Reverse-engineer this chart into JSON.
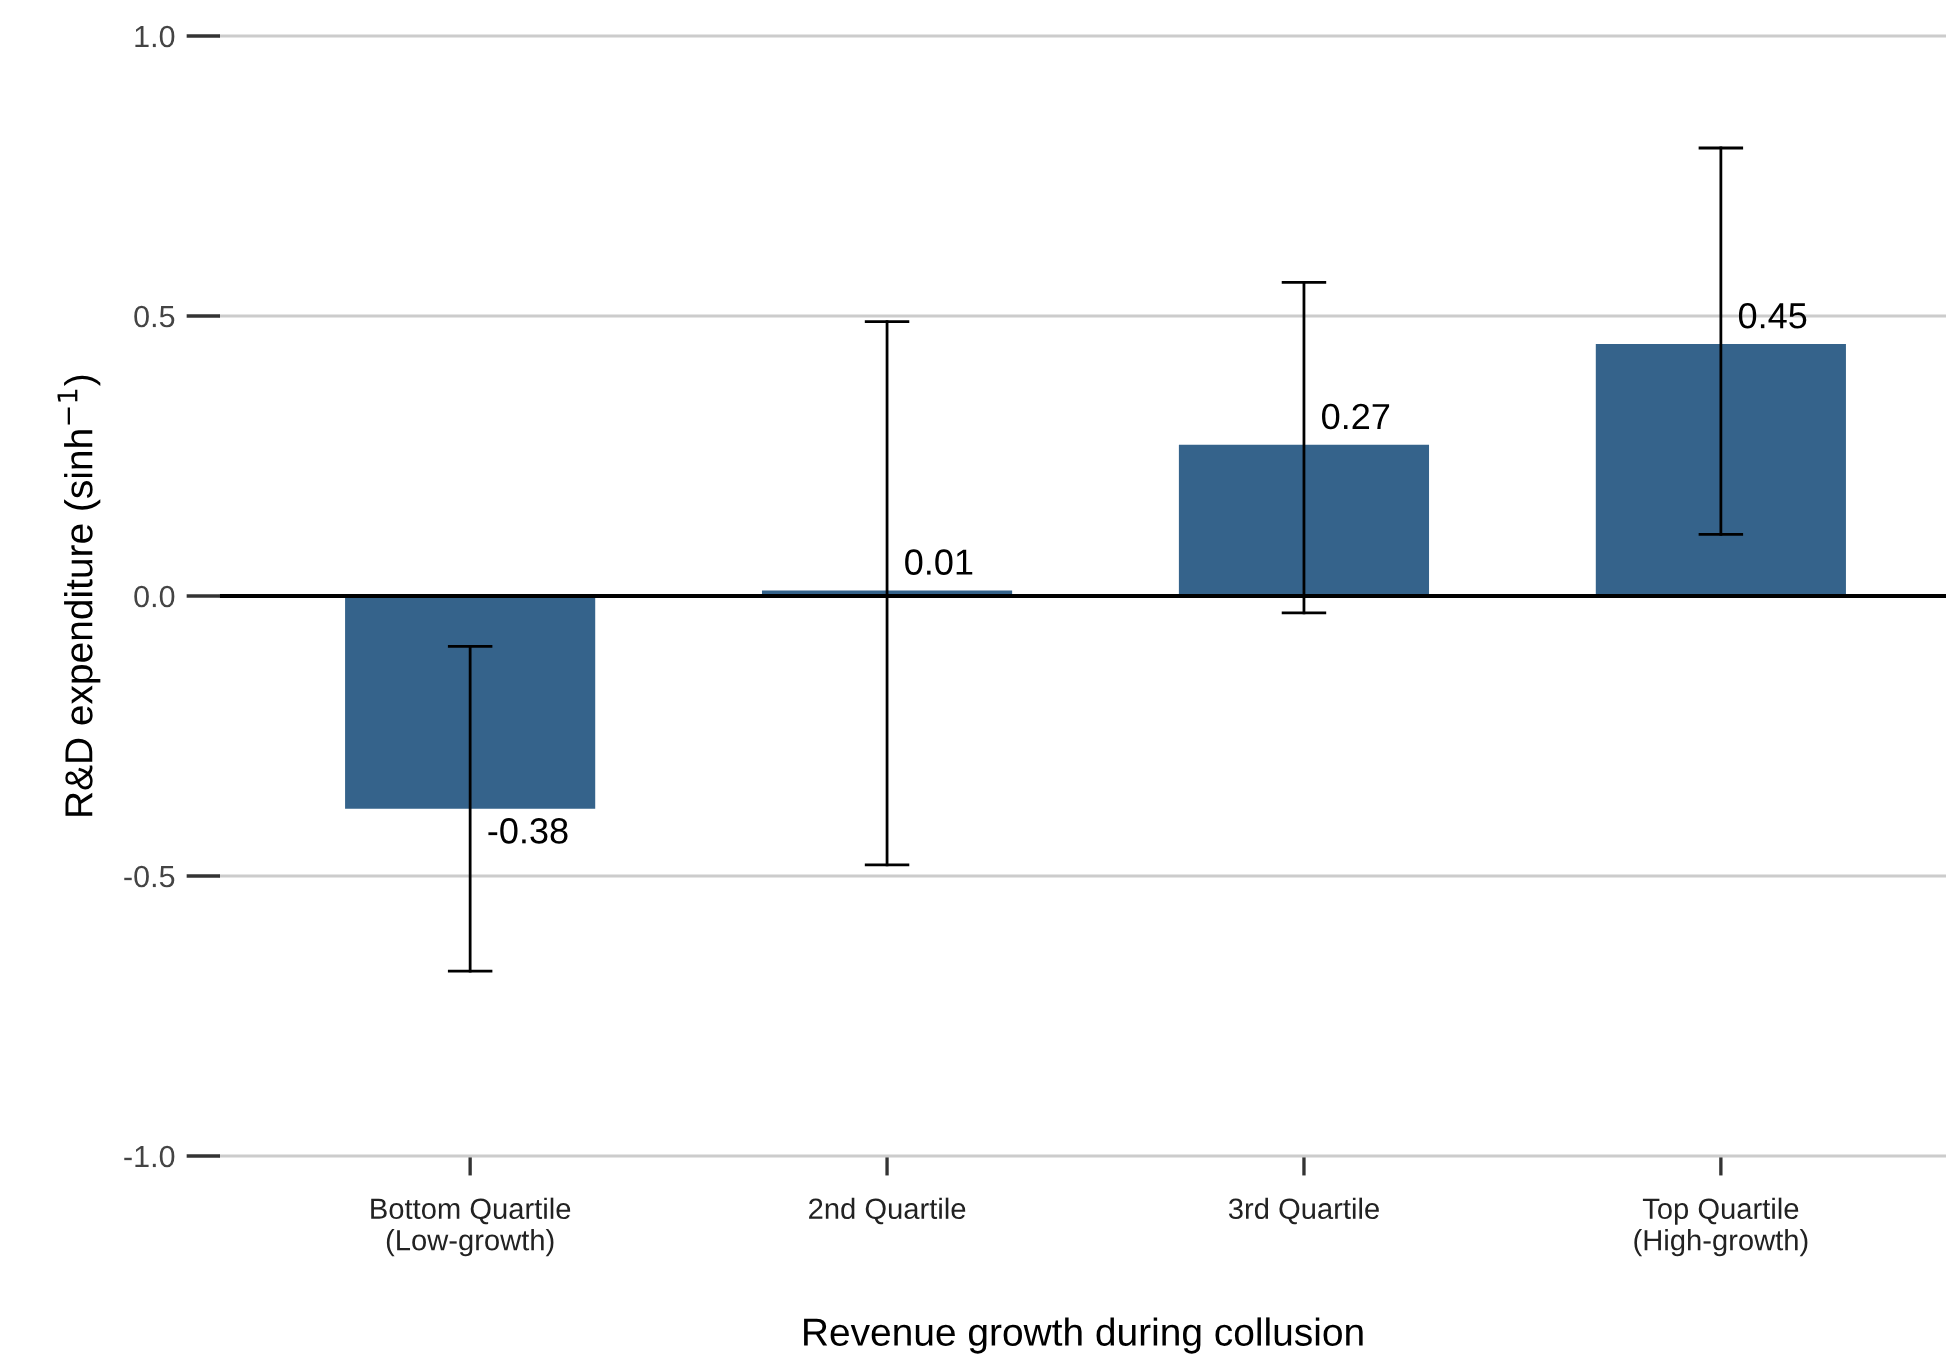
{
  "chart_data": {
    "type": "bar",
    "xlabel": "Revenue growth during collusion",
    "ylabel": "R&D expenditure (sinh$^{−1}$)",
    "categories": [
      "Bottom Quartile\n(Low-growth)",
      "2nd Quartile",
      "3rd Quartile",
      "Top Quartile\n(High-growth)"
    ],
    "values": [
      -0.38,
      0.01,
      0.27,
      0.45
    ],
    "errors": [
      [
        -0.67,
        -0.09
      ],
      [
        -0.48,
        0.49
      ],
      [
        -0.03,
        0.56
      ],
      [
        0.11,
        0.8
      ]
    ],
    "color": "#35638b",
    "data_labels": true,
    "ylim": [
      -1.0,
      1.0
    ],
    "yticks": [
      {
        "value": -1,
        "label": "-1.0"
      },
      -0.5,
      {
        "value": 0,
        "label": "0.0"
      },
      0.5,
      {
        "value": 1,
        "label": "1.0"
      }
    ],
    "grid": "y",
    "legend": false,
    "ref_lines": [
      {
        "axis": "y",
        "value": 0,
        "color": "#000000"
      }
    ]
  }
}
